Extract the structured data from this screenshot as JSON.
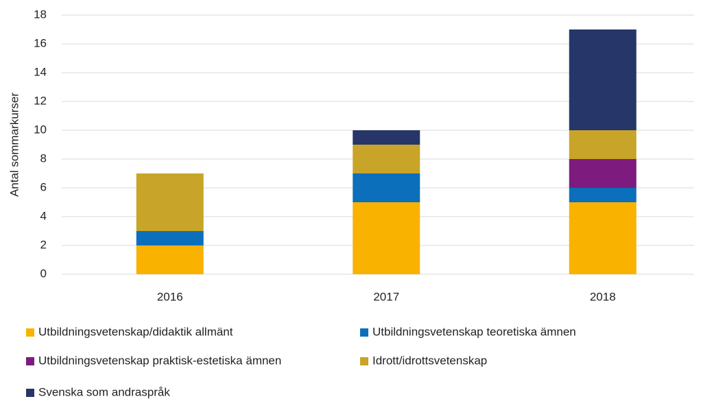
{
  "chart_data": {
    "type": "stacked_bar",
    "y_label": "Antal sommarkurser",
    "categories": [
      "2016",
      "2017",
      "2018"
    ],
    "series": [
      {
        "name": "Utbildningsvetenskap/didaktik allmänt",
        "color": "#f9b200",
        "values": [
          2,
          5,
          5
        ]
      },
      {
        "name": "Utbildningsvetenskap teoretiska ämnen",
        "color": "#0b6fbb",
        "values": [
          1,
          2,
          1
        ]
      },
      {
        "name": "Utbildningsvetenskap praktisk-estetiska ämnen",
        "color": "#7d1b7e",
        "values": [
          0,
          0,
          2
        ]
      },
      {
        "name": "Idrott/idrottsvetenskap",
        "color": "#c8a428",
        "values": [
          4,
          2,
          2
        ]
      },
      {
        "name": "Svenska som andraspråk",
        "color": "#263669",
        "values": [
          0,
          1,
          7
        ]
      }
    ],
    "ylim": [
      0,
      18
    ],
    "yticks": [
      0,
      2,
      4,
      6,
      8,
      10,
      12,
      14,
      16,
      18
    ],
    "grid": true
  }
}
